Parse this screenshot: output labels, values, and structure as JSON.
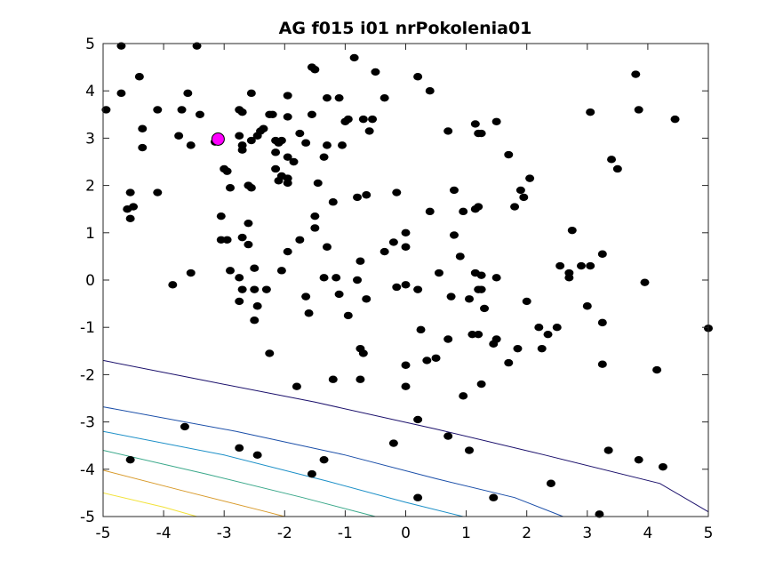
{
  "chart_data": {
    "type": "scatter",
    "title": "AG f015 i01 nrPokolenia01",
    "xlabel": "",
    "ylabel": "",
    "xlim": [
      -5,
      5
    ],
    "ylim": [
      -5,
      5
    ],
    "xticks": [
      -5,
      -4,
      -3,
      -2,
      -1,
      0,
      1,
      2,
      3,
      4,
      5
    ],
    "yticks": [
      -5,
      -4,
      -3,
      -2,
      -1,
      0,
      1,
      2,
      3,
      4,
      5
    ],
    "xtick_labels": [
      "-5",
      "-4",
      "-3",
      "-2",
      "-1",
      "0",
      "1",
      "2",
      "3",
      "4",
      "5"
    ],
    "ytick_labels": [
      "-5",
      "-4",
      "-3",
      "-2",
      "-1",
      "0",
      "1",
      "2",
      "3",
      "4",
      "5"
    ],
    "grid": false,
    "series": [
      {
        "color": "#000000",
        "points": [
          [
            -4.7,
            4.95
          ],
          [
            -3.45,
            4.95
          ],
          [
            -4.7,
            3.95
          ],
          [
            -4.4,
            4.3
          ],
          [
            -4.95,
            3.6
          ],
          [
            -4.1,
            3.6
          ],
          [
            -3.7,
            3.6
          ],
          [
            -3.4,
            3.5
          ],
          [
            -3.6,
            3.95
          ],
          [
            -4.35,
            3.2
          ],
          [
            -3.75,
            3.05
          ],
          [
            -4.35,
            2.8
          ],
          [
            -3.55,
            2.85
          ],
          [
            -3.15,
            2.92
          ],
          [
            -2.55,
            3.95
          ],
          [
            -2.75,
            3.6
          ],
          [
            -2.7,
            3.55
          ],
          [
            -2.75,
            3.05
          ],
          [
            -2.7,
            2.85
          ],
          [
            -2.7,
            2.75
          ],
          [
            -2.55,
            2.95
          ],
          [
            -2.4,
            3.15
          ],
          [
            -2.35,
            3.2
          ],
          [
            -2.45,
            3.05
          ],
          [
            -2.25,
            3.5
          ],
          [
            -2.2,
            3.5
          ],
          [
            -1.95,
            3.9
          ],
          [
            -1.95,
            3.45
          ],
          [
            -2.15,
            2.95
          ],
          [
            -2.05,
            2.95
          ],
          [
            -2.1,
            2.9
          ],
          [
            -2.15,
            2.7
          ],
          [
            -1.95,
            2.6
          ],
          [
            -1.85,
            2.5
          ],
          [
            -2.15,
            2.35
          ],
          [
            -2.05,
            2.2
          ],
          [
            -2.1,
            2.1
          ],
          [
            -1.95,
            2.15
          ],
          [
            -1.95,
            2.05
          ],
          [
            -3.0,
            2.35
          ],
          [
            -2.95,
            2.3
          ],
          [
            -2.9,
            1.95
          ],
          [
            -2.55,
            1.95
          ],
          [
            -1.75,
            3.1
          ],
          [
            -1.55,
            4.5
          ],
          [
            -1.5,
            4.45
          ],
          [
            -1.55,
            3.5
          ],
          [
            -1.3,
            3.85
          ],
          [
            -1.1,
            3.85
          ],
          [
            -0.85,
            4.7
          ],
          [
            -0.5,
            4.4
          ],
          [
            -0.35,
            3.85
          ],
          [
            -0.55,
            3.4
          ],
          [
            -0.7,
            3.4
          ],
          [
            -0.95,
            3.4
          ],
          [
            -1.0,
            3.35
          ],
          [
            -0.6,
            3.15
          ],
          [
            -1.3,
            2.85
          ],
          [
            -1.05,
            2.85
          ],
          [
            -1.65,
            2.9
          ],
          [
            -1.35,
            2.6
          ],
          [
            -1.45,
            2.05
          ],
          [
            -1.2,
            1.65
          ],
          [
            -0.8,
            1.75
          ],
          [
            -0.65,
            1.8
          ],
          [
            -0.15,
            1.85
          ],
          [
            -1.5,
            1.35
          ],
          [
            -1.5,
            1.1
          ],
          [
            -1.75,
            0.85
          ],
          [
            -1.3,
            0.7
          ],
          [
            -2.6,
            2.0
          ],
          [
            -2.6,
            1.2
          ],
          [
            -2.6,
            0.75
          ],
          [
            -2.7,
            0.9
          ],
          [
            -3.05,
            0.85
          ],
          [
            -2.95,
            0.85
          ],
          [
            -3.05,
            1.35
          ],
          [
            -1.95,
            0.6
          ],
          [
            -2.05,
            0.2
          ],
          [
            -2.5,
            0.25
          ],
          [
            -2.9,
            0.2
          ],
          [
            -2.75,
            0.05
          ],
          [
            -2.7,
            -0.2
          ],
          [
            -2.5,
            -0.2
          ],
          [
            -2.3,
            -0.2
          ],
          [
            -2.75,
            -0.45
          ],
          [
            -2.45,
            -0.55
          ],
          [
            -2.5,
            -0.85
          ],
          [
            -3.55,
            0.15
          ],
          [
            -3.85,
            -0.1
          ],
          [
            -4.1,
            1.85
          ],
          [
            -4.5,
            1.55
          ],
          [
            -4.6,
            1.5
          ],
          [
            -4.55,
            1.3
          ],
          [
            -4.55,
            1.85
          ],
          [
            -1.65,
            -0.35
          ],
          [
            -1.6,
            -0.7
          ],
          [
            -1.35,
            0.05
          ],
          [
            -1.15,
            0.05
          ],
          [
            -1.1,
            -0.3
          ],
          [
            -0.95,
            -0.75
          ],
          [
            -0.75,
            0.4
          ],
          [
            -0.8,
            0.0
          ],
          [
            -0.65,
            -0.4
          ],
          [
            -0.35,
            0.6
          ],
          [
            -0.2,
            0.8
          ],
          [
            0.0,
            1.0
          ],
          [
            0.0,
            0.7
          ],
          [
            -0.15,
            -0.15
          ],
          [
            0.0,
            -0.1
          ],
          [
            0.2,
            -0.2
          ],
          [
            0.4,
            1.45
          ],
          [
            0.2,
            4.3
          ],
          [
            0.4,
            4.0
          ],
          [
            0.7,
            3.15
          ],
          [
            0.8,
            1.9
          ],
          [
            0.95,
            1.45
          ],
          [
            1.15,
            1.5
          ],
          [
            1.2,
            1.55
          ],
          [
            0.8,
            0.95
          ],
          [
            0.9,
            0.5
          ],
          [
            0.55,
            0.15
          ],
          [
            0.75,
            -0.35
          ],
          [
            1.15,
            0.15
          ],
          [
            1.25,
            0.1
          ],
          [
            1.2,
            -0.2
          ],
          [
            1.25,
            -0.2
          ],
          [
            1.05,
            -0.4
          ],
          [
            1.3,
            -0.6
          ],
          [
            1.5,
            0.05
          ],
          [
            1.15,
            3.3
          ],
          [
            1.2,
            3.1
          ],
          [
            1.25,
            3.1
          ],
          [
            1.5,
            3.35
          ],
          [
            1.7,
            2.65
          ],
          [
            1.9,
            1.9
          ],
          [
            2.05,
            2.15
          ],
          [
            1.8,
            1.55
          ],
          [
            1.95,
            1.75
          ],
          [
            2.0,
            -0.45
          ],
          [
            2.2,
            -1.0
          ],
          [
            2.35,
            -1.15
          ],
          [
            2.5,
            -1.0
          ],
          [
            2.75,
            1.05
          ],
          [
            2.55,
            0.3
          ],
          [
            2.7,
            0.05
          ],
          [
            2.7,
            0.15
          ],
          [
            2.9,
            0.3
          ],
          [
            3.05,
            0.3
          ],
          [
            3.25,
            0.55
          ],
          [
            3.0,
            -0.55
          ],
          [
            3.25,
            -0.9
          ],
          [
            3.05,
            3.55
          ],
          [
            3.4,
            2.55
          ],
          [
            3.5,
            2.35
          ],
          [
            3.8,
            4.35
          ],
          [
            3.85,
            3.6
          ],
          [
            3.95,
            -0.05
          ],
          [
            4.45,
            3.4
          ],
          [
            5.0,
            -1.02
          ],
          [
            0.25,
            -1.05
          ],
          [
            0.35,
            -1.7
          ],
          [
            0.5,
            -1.65
          ],
          [
            0.7,
            -1.25
          ],
          [
            1.1,
            -1.15
          ],
          [
            1.2,
            -1.15
          ],
          [
            1.45,
            -1.35
          ],
          [
            1.5,
            -1.25
          ],
          [
            1.7,
            -1.75
          ],
          [
            1.85,
            -1.45
          ],
          [
            2.25,
            -1.45
          ],
          [
            1.25,
            -2.2
          ],
          [
            0.95,
            -2.45
          ],
          [
            0.0,
            -1.8
          ],
          [
            0.0,
            -2.25
          ],
          [
            -0.75,
            -1.45
          ],
          [
            -0.7,
            -1.55
          ],
          [
            -0.75,
            -2.1
          ],
          [
            -1.2,
            -2.1
          ],
          [
            -1.8,
            -2.25
          ],
          [
            -2.25,
            -1.55
          ],
          [
            -3.65,
            -3.1
          ],
          [
            -4.55,
            -3.8
          ],
          [
            -2.75,
            -3.55
          ],
          [
            -2.45,
            -3.7
          ],
          [
            -1.55,
            -4.1
          ],
          [
            -1.35,
            -3.8
          ],
          [
            -0.2,
            -3.45
          ],
          [
            0.2,
            -2.95
          ],
          [
            0.7,
            -3.3
          ],
          [
            1.05,
            -3.6
          ],
          [
            0.2,
            -4.6
          ],
          [
            1.45,
            -4.6
          ],
          [
            2.4,
            -4.3
          ],
          [
            3.2,
            -4.95
          ],
          [
            3.25,
            -1.78
          ],
          [
            3.35,
            -3.6
          ],
          [
            3.85,
            -3.8
          ],
          [
            4.15,
            -1.9
          ],
          [
            4.25,
            -3.95
          ]
        ]
      }
    ],
    "best_point": {
      "x": -3.1,
      "y": 2.98,
      "color": "#ff00ff"
    },
    "contours": [
      {
        "color": "#1a0f6b",
        "points": [
          [
            -5,
            -1.7
          ],
          [
            -3.3,
            -2.13
          ],
          [
            -1.5,
            -2.58
          ],
          [
            0.5,
            -3.15
          ],
          [
            2.3,
            -3.7
          ],
          [
            4.2,
            -4.3
          ],
          [
            5,
            -4.9
          ]
        ]
      },
      {
        "color": "#1a4ea8",
        "points": [
          [
            -5,
            -2.68
          ],
          [
            -2.8,
            -3.2
          ],
          [
            -1.0,
            -3.7
          ],
          [
            0.5,
            -4.2
          ],
          [
            1.8,
            -4.6
          ],
          [
            2.6,
            -5.0
          ]
        ]
      },
      {
        "color": "#1b8fc7",
        "points": [
          [
            -5,
            -3.2
          ],
          [
            -3.0,
            -3.7
          ],
          [
            -1.3,
            -4.25
          ],
          [
            0.0,
            -4.7
          ],
          [
            0.95,
            -5.0
          ]
        ]
      },
      {
        "color": "#3aa88a",
        "points": [
          [
            -5,
            -3.6
          ],
          [
            -3.3,
            -4.1
          ],
          [
            -1.7,
            -4.6
          ],
          [
            -0.5,
            -5.0
          ]
        ]
      },
      {
        "color": "#d89a2a",
        "points": [
          [
            -5,
            -4.02
          ],
          [
            -3.7,
            -4.45
          ],
          [
            -2.3,
            -4.9
          ],
          [
            -2.0,
            -5.0
          ]
        ]
      },
      {
        "color": "#f2e23a",
        "points": [
          [
            -5,
            -4.5
          ],
          [
            -4.0,
            -4.8
          ],
          [
            -3.45,
            -5.0
          ]
        ]
      }
    ]
  }
}
